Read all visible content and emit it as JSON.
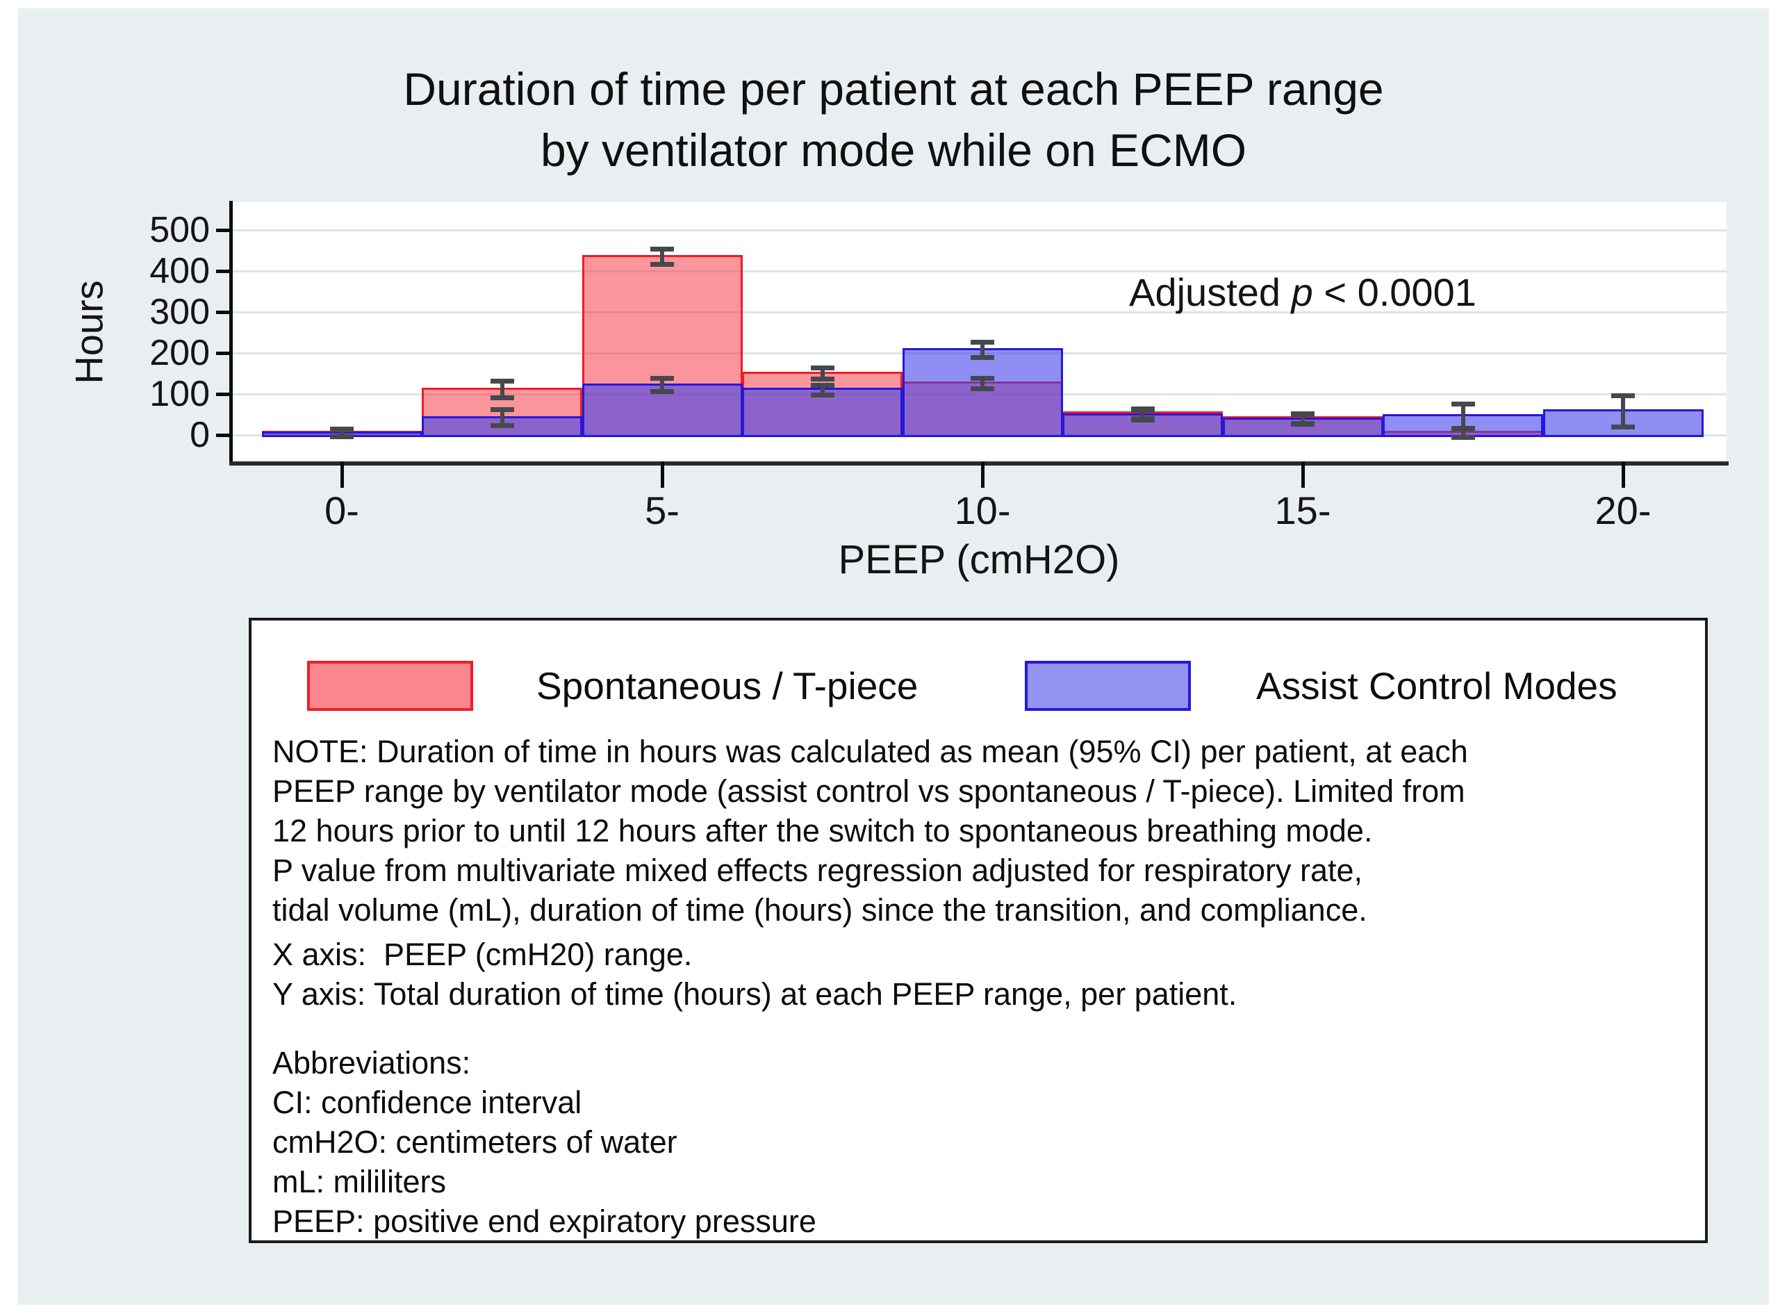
{
  "figure": {
    "title_line1": "Duration of time per patient at each PEEP range",
    "title_line2": "by ventilator mode while on ECMO",
    "y_axis_title": "Hours",
    "x_axis_title": "PEEP (cmH2O)",
    "annotation": {
      "prefix": "Adjusted ",
      "p": "p",
      "suffix": " < 0.0001"
    },
    "y_ticks": [
      0,
      100,
      200,
      300,
      400,
      500
    ],
    "x_ticks": [
      {
        "label": "0-",
        "bin": 0
      },
      {
        "label": "5-",
        "bin": 2
      },
      {
        "label": "10-",
        "bin": 4
      },
      {
        "label": "15-",
        "bin": 6
      },
      {
        "label": "20-",
        "bin": 8
      }
    ]
  },
  "chart_data": {
    "type": "bar",
    "subtype": "overlaid-histogram with 95% CI error bars",
    "title": "Duration of time per patient at each PEEP range by ventilator mode while on ECMO",
    "xlabel": "PEEP (cmH2O)",
    "ylabel": "Hours",
    "ylim": [
      0,
      560
    ],
    "grid": "horizontal",
    "annotation": "Adjusted p < 0.0001",
    "x_bin_starts": [
      0,
      2.5,
      5,
      7.5,
      10,
      12.5,
      15,
      17.5,
      20
    ],
    "x_bin_width": 2.5,
    "x_tick_labels": [
      "0-",
      "5-",
      "10-",
      "15-",
      "20-"
    ],
    "series": [
      {
        "name": "Spontaneous / T-piece",
        "border_color": "#F11D25",
        "fill_color": "#FA868E",
        "values": [
          5,
          110,
          434,
          150,
          126,
          52,
          40,
          5,
          0
        ],
        "ci_low": [
          2,
          96,
          422,
          143,
          119,
          46,
          34,
          0,
          null
        ],
        "ci_high": [
          9,
          126,
          447,
          158,
          133,
          58,
          46,
          10,
          null
        ]
      },
      {
        "name": "Assist Control Modes",
        "border_color": "#2517DC",
        "fill_color": "#9393F2",
        "values": [
          4,
          40,
          120,
          110,
          207,
          48,
          38,
          45,
          57
        ],
        "ci_low": [
          2,
          29,
          111,
          104,
          195,
          42,
          32,
          20,
          26
        ],
        "ci_high": [
          7,
          56,
          133,
          116,
          221,
          54,
          44,
          70,
          89
        ]
      }
    ],
    "legend_position": "below-plot box"
  },
  "legend": {
    "items": [
      {
        "label": "Spontaneous / T-piece",
        "color": "#FA868E"
      },
      {
        "label": "Assist Control Modes",
        "color": "#9393F2"
      }
    ]
  },
  "notes": {
    "note": "NOTE: Duration of time in hours was calculated as mean (95% CI) per patient, at each\nPEEP range by ventilator mode (assist control vs spontaneous / T-piece). Limited from\n12 hours prior to until 12 hours after the switch to spontaneous breathing mode.\nP value from multivariate mixed effects regression adjusted for respiratory rate,\ntidal volume (mL), duration of time (hours) since the transition, and compliance.",
    "axes": "X axis:  PEEP (cmH20) range.\nY axis: Total duration of time (hours) at each PEEP range, per patient.",
    "abbreviations": "Abbreviations:\nCI: confidence interval\ncmH2O: centimeters of water\nmL: mililiters\nPEEP: positive end expiratory pressure"
  }
}
